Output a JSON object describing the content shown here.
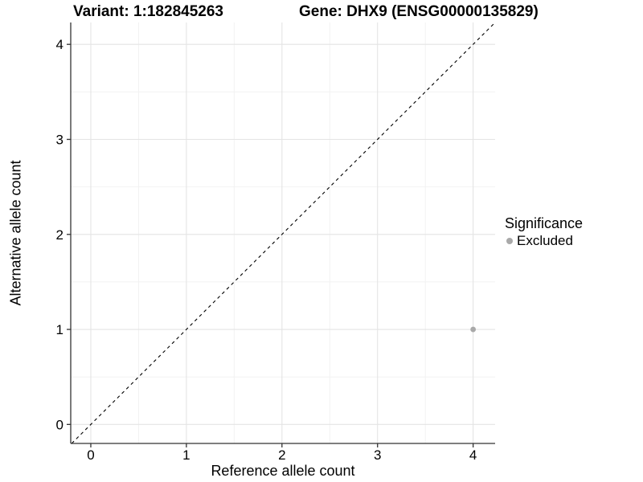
{
  "titles": {
    "variant": "Variant: 1:182845263",
    "gene": "Gene: DHX9 (ENSG00000135829)"
  },
  "chart_data": {
    "type": "scatter",
    "xlabel": "Reference allele count",
    "ylabel": "Alternative allele count",
    "x_ticks": [
      0,
      1,
      2,
      3,
      4
    ],
    "y_ticks": [
      0,
      1,
      2,
      3,
      4
    ],
    "xlim": [
      -0.21,
      4.23
    ],
    "ylim": [
      -0.2,
      4.23
    ],
    "grid": "major+minor",
    "points": [
      {
        "x": 4,
        "y": 1,
        "significance": "Excluded"
      }
    ],
    "identity_line": {
      "equation": "y = x",
      "style": "dashed",
      "color": "#000000"
    },
    "legend": {
      "title": "Significance",
      "position": "right",
      "items": [
        {
          "label": "Excluded",
          "color": "#a9a9a9"
        }
      ]
    }
  },
  "colors": {
    "background": "#ffffff",
    "grid_major": "#e4e4e4",
    "grid_minor": "#f2f2f2",
    "axis_line": "#333333",
    "text": "#000000",
    "point": "#a9a9a9"
  }
}
